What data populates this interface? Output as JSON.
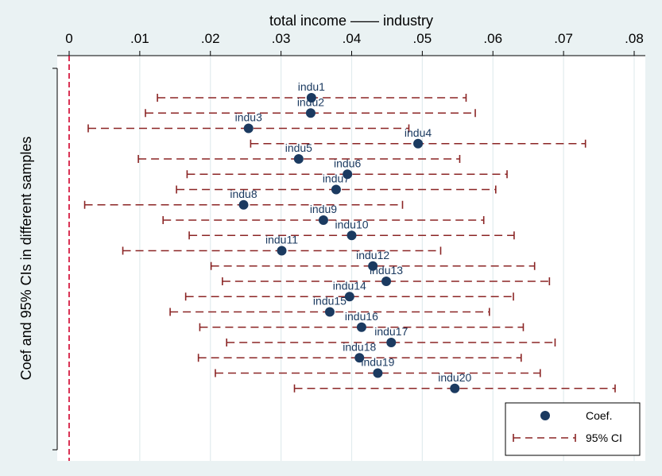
{
  "chart_data": {
    "type": "scatter",
    "title": "total income —— industry",
    "ylabel": "Coef and 95% CIs in different samples",
    "xlim": [
      0,
      0.08
    ],
    "x_ticks": [
      "0",
      ".01",
      ".02",
      ".03",
      ".04",
      ".05",
      ".06",
      ".07",
      ".08"
    ],
    "x_tick_values": [
      0,
      0.01,
      0.02,
      0.03,
      0.04,
      0.05,
      0.06,
      0.07,
      0.08
    ],
    "reference_line": 0,
    "grid": true,
    "legend_position": "bottom-right",
    "legend": [
      "Coef.",
      "95% CI"
    ],
    "colors": {
      "point": "#1b3a60",
      "ci": "#8b2525",
      "refline": "#d0002a",
      "background": "#eaf2f3",
      "plot": "#ffffff",
      "grid": "#e2ecee"
    },
    "series": [
      {
        "label": "indu1",
        "coef": 0.0343,
        "ci": [
          0.0125,
          0.0562
        ]
      },
      {
        "label": "indu2",
        "coef": 0.0342,
        "ci": [
          0.0108,
          0.0575
        ]
      },
      {
        "label": "indu3",
        "coef": 0.0254,
        "ci": [
          0.0027,
          0.0481
        ]
      },
      {
        "label": "indu4",
        "coef": 0.0494,
        "ci": [
          0.0257,
          0.0731
        ]
      },
      {
        "label": "indu5",
        "coef": 0.0325,
        "ci": [
          0.0098,
          0.0553
        ]
      },
      {
        "label": "indu6",
        "coef": 0.0394,
        "ci": [
          0.0167,
          0.062
        ]
      },
      {
        "label": "indu7",
        "coef": 0.0378,
        "ci": [
          0.0152,
          0.0604
        ]
      },
      {
        "label": "indu8",
        "coef": 0.0247,
        "ci": [
          0.0022,
          0.0472
        ]
      },
      {
        "label": "indu9",
        "coef": 0.036,
        "ci": [
          0.0133,
          0.0587
        ]
      },
      {
        "label": "indu10",
        "coef": 0.04,
        "ci": [
          0.017,
          0.063
        ]
      },
      {
        "label": "indu11",
        "coef": 0.0301,
        "ci": [
          0.0076,
          0.0526
        ]
      },
      {
        "label": "indu12",
        "coef": 0.043,
        "ci": [
          0.0201,
          0.0659
        ]
      },
      {
        "label": "indu13",
        "coef": 0.0449,
        "ci": [
          0.0217,
          0.068
        ]
      },
      {
        "label": "indu14",
        "coef": 0.0397,
        "ci": [
          0.0165,
          0.0629
        ]
      },
      {
        "label": "indu15",
        "coef": 0.0369,
        "ci": [
          0.0143,
          0.0595
        ]
      },
      {
        "label": "indu16",
        "coef": 0.0414,
        "ci": [
          0.0185,
          0.0643
        ]
      },
      {
        "label": "indu17",
        "coef": 0.0456,
        "ci": [
          0.0223,
          0.0688
        ]
      },
      {
        "label": "indu18",
        "coef": 0.0411,
        "ci": [
          0.0183,
          0.064
        ]
      },
      {
        "label": "indu19",
        "coef": 0.0437,
        "ci": [
          0.0207,
          0.0667
        ]
      },
      {
        "label": "indu20",
        "coef": 0.0546,
        "ci": [
          0.0319,
          0.0773
        ]
      }
    ]
  }
}
